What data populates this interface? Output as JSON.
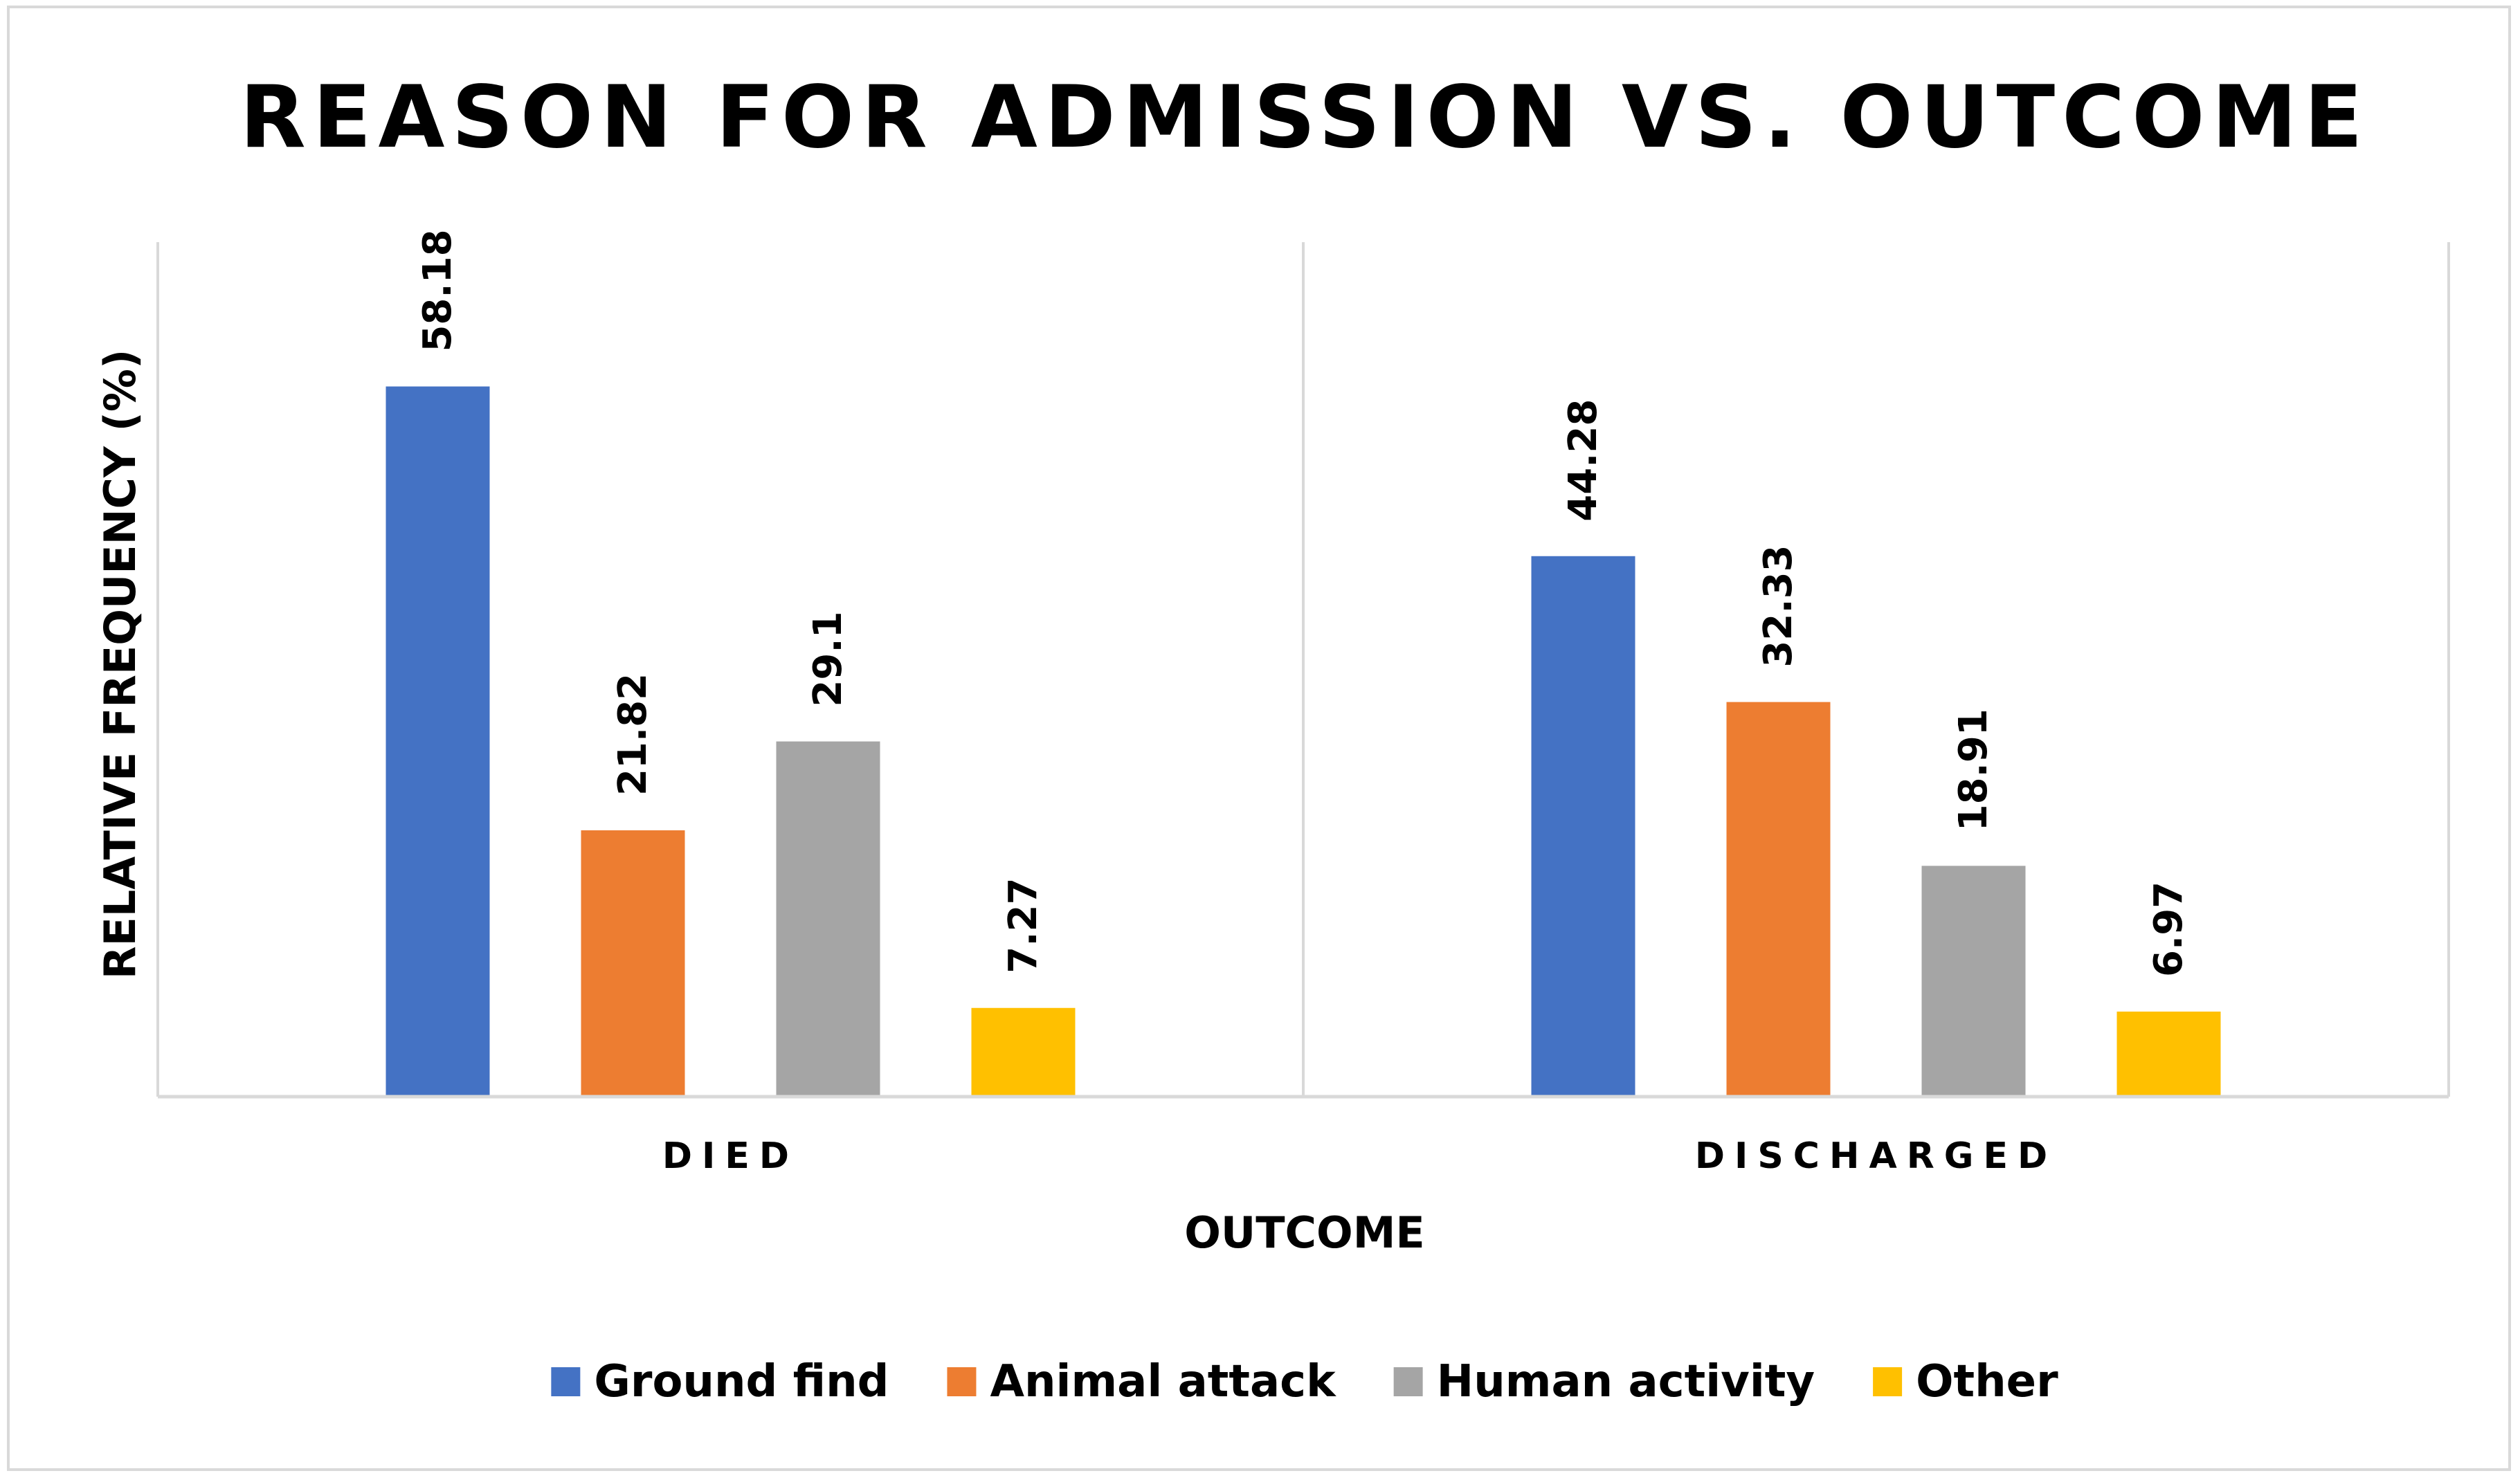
{
  "chart_data": {
    "type": "bar",
    "title": "REASON FOR ADMISSION VS. OUTCOME",
    "xlabel": "OUTCOME",
    "ylabel": "RELATIVE FREQUENCY (%)",
    "categories": [
      "DIED",
      "DISCHARGED"
    ],
    "series": [
      {
        "name": "Ground find",
        "color": "#4472C4",
        "values": [
          58.18,
          44.28
        ]
      },
      {
        "name": "Animal attack",
        "color": "#ED7D31",
        "values": [
          21.82,
          32.33
        ]
      },
      {
        "name": "Human activity",
        "color": "#A5A5A5",
        "values": [
          29.1,
          18.91
        ]
      },
      {
        "name": "Other",
        "color": "#FFC000",
        "values": [
          7.27,
          6.97
        ]
      }
    ],
    "ylim": [
      0,
      70
    ],
    "grid": false,
    "legend_position": "bottom",
    "data_labels_rotated": true
  }
}
